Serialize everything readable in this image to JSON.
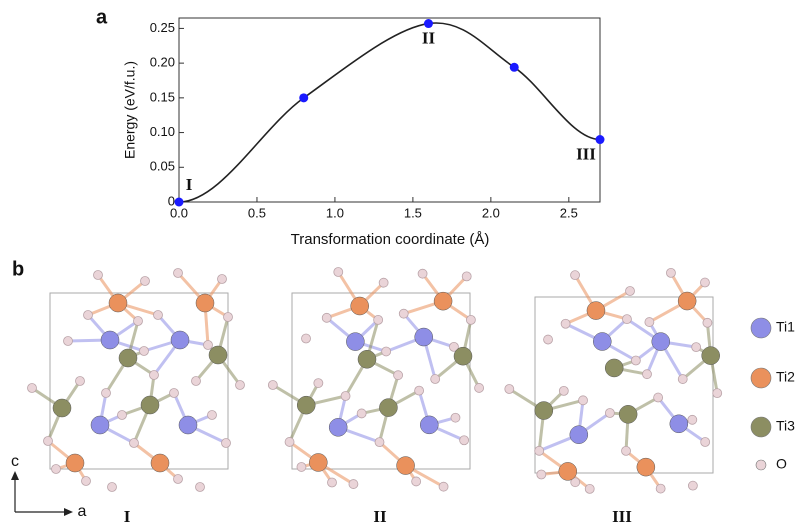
{
  "chart_data": {
    "type": "line",
    "panel_label": "a",
    "xlabel": "Transformation coordinate (Å)",
    "ylabel": "Energy (eV/f.u.)",
    "x": [
      0,
      0.8,
      1.6,
      2.15,
      2.7
    ],
    "values": [
      0,
      0.15,
      0.257,
      0.194,
      0.09
    ],
    "color": "#1a1aff",
    "line_color": "#222222",
    "xlim": [
      0,
      2.7
    ],
    "xticks": [
      {
        "value": 0,
        "label": "0.0"
      },
      0.5,
      {
        "value": 1,
        "label": "1.0"
      },
      1.5,
      {
        "value": 2,
        "label": "2.0"
      },
      2.5
    ],
    "ylim": [
      0,
      0.265
    ],
    "yticks": [
      0,
      0.05,
      {
        "value": 0.1,
        "label": "0.10"
      },
      0.15,
      {
        "value": 0.2,
        "label": "0.20"
      },
      0.25
    ],
    "annotations": [
      {
        "text": "I",
        "x": 0,
        "y": 0
      },
      {
        "text": "II",
        "x": 1.6,
        "y": 0.257
      },
      {
        "text": "III",
        "x": 2.7,
        "y": 0.09
      }
    ]
  },
  "structures": {
    "panel_label": "b",
    "labels": [
      "I",
      "II",
      "III"
    ],
    "legend": [
      {
        "name": "Ti1",
        "color": "#8e8ee6"
      },
      {
        "name": "Ti2",
        "color": "#ea915c"
      },
      {
        "name": "Ti3",
        "color": "#8c8e62"
      },
      {
        "name": "O",
        "color": "#ead4d8"
      }
    ],
    "axes": [
      "c",
      "a"
    ]
  }
}
